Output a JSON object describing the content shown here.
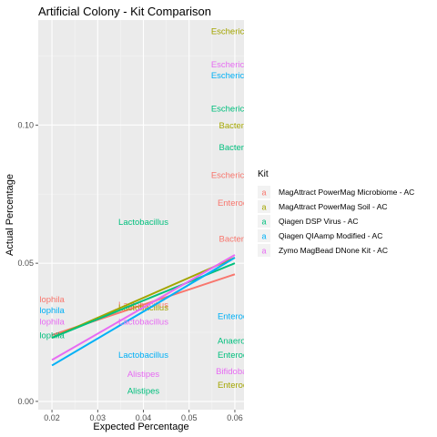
{
  "chart_data": {
    "type": "scatter",
    "title": "Artificial Colony - Kit Comparison",
    "xlabel": "Expected Percentage",
    "ylabel": "Actual Percentage",
    "xlim": [
      0.017,
      0.062
    ],
    "ylim": [
      -0.003,
      0.138
    ],
    "x_ticks": [
      0.02,
      0.03,
      0.04,
      0.05,
      0.06
    ],
    "x_tick_labels": [
      "0.02",
      "0.03",
      "0.04",
      "0.05",
      "0.06"
    ],
    "y_ticks": [
      0.0,
      0.05,
      0.1
    ],
    "y_tick_labels": [
      "0.00",
      "0.05",
      "0.10"
    ],
    "grid": true,
    "legend": {
      "title": "Kit",
      "position": "right",
      "key_glyph": "a"
    },
    "series": [
      {
        "name": "MagAttract PowerMag Microbiome - AC",
        "color": "#F8766D",
        "trend": [
          [
            0.02,
            0.024
          ],
          [
            0.06,
            0.046
          ]
        ],
        "points": [
          {
            "x": 0.02,
            "y": 0.037,
            "label": "lophila"
          },
          {
            "x": 0.04,
            "y": 0.035,
            "label": "Lactobacillus"
          },
          {
            "x": 0.06,
            "y": 0.059,
            "label": "Bacteroi"
          },
          {
            "x": 0.06,
            "y": 0.072,
            "label": "Enteroco"
          },
          {
            "x": 0.06,
            "y": 0.082,
            "label": "Escherichia-"
          }
        ]
      },
      {
        "name": "MagAttract PowerMag Soil - AC",
        "color": "#A3A500",
        "trend": [
          [
            0.02,
            0.023
          ],
          [
            0.06,
            0.052
          ]
        ],
        "points": [
          {
            "x": 0.04,
            "y": 0.034,
            "label": "Lactobacillus"
          },
          {
            "x": 0.06,
            "y": 0.006,
            "label": "Enteroco"
          },
          {
            "x": 0.06,
            "y": 0.1,
            "label": "Bacteroi"
          },
          {
            "x": 0.06,
            "y": 0.134,
            "label": "Escherichia-"
          }
        ]
      },
      {
        "name": "Qiagen DSP Virus - AC",
        "color": "#00BF7D",
        "trend": [
          [
            0.02,
            0.023
          ],
          [
            0.06,
            0.05
          ]
        ],
        "points": [
          {
            "x": 0.02,
            "y": 0.024,
            "label": "lophila"
          },
          {
            "x": 0.04,
            "y": 0.065,
            "label": "Lactobacillus"
          },
          {
            "x": 0.04,
            "y": 0.004,
            "label": "Alistipes"
          },
          {
            "x": 0.06,
            "y": 0.022,
            "label": "Anaerost"
          },
          {
            "x": 0.06,
            "y": 0.017,
            "label": "Enteroco"
          },
          {
            "x": 0.06,
            "y": 0.092,
            "label": "Bacteroi"
          },
          {
            "x": 0.06,
            "y": 0.106,
            "label": "Escherichia-"
          }
        ]
      },
      {
        "name": "Qiagen QIAamp  Modified - AC",
        "color": "#00B0F6",
        "trend": [
          [
            0.02,
            0.013
          ],
          [
            0.06,
            0.052
          ]
        ],
        "points": [
          {
            "x": 0.02,
            "y": 0.033,
            "label": "lophila"
          },
          {
            "x": 0.04,
            "y": 0.017,
            "label": "Lactobacillus"
          },
          {
            "x": 0.06,
            "y": 0.031,
            "label": "Enteroco"
          },
          {
            "x": 0.06,
            "y": 0.118,
            "label": "Escherichia-"
          }
        ]
      },
      {
        "name": "Zymo MagBead DNone Kit - AC",
        "color": "#E76BF3",
        "trend": [
          [
            0.02,
            0.015
          ],
          [
            0.06,
            0.053
          ]
        ],
        "points": [
          {
            "x": 0.02,
            "y": 0.029,
            "label": "lophila"
          },
          {
            "x": 0.04,
            "y": 0.029,
            "label": "Lactobacillus"
          },
          {
            "x": 0.04,
            "y": 0.01,
            "label": "Alistipes"
          },
          {
            "x": 0.06,
            "y": 0.011,
            "label": "Bifidobact"
          },
          {
            "x": 0.06,
            "y": 0.122,
            "label": "Escherichia-"
          }
        ]
      }
    ]
  }
}
